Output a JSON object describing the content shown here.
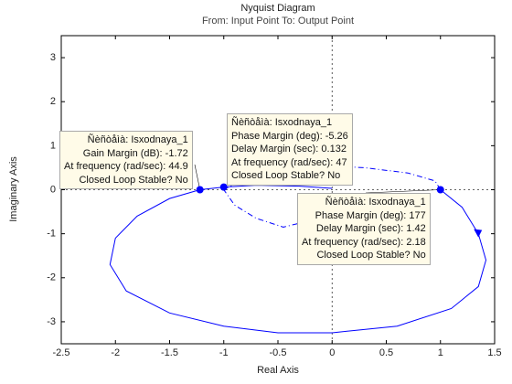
{
  "chart_data": {
    "type": "line",
    "title": "Nyquist Diagram",
    "subtitle": "From: Input Point  To: Output Point",
    "x_label": "Real Axis",
    "y_label": "Imaginary Axis",
    "xlim": [
      -2.5,
      1.5
    ],
    "ylim": [
      -3.5,
      3.5
    ],
    "xticks": [
      -2.5,
      -2,
      -1.5,
      -1,
      -0.5,
      0,
      0.5,
      1,
      1.5
    ],
    "yticks": [
      -3,
      -2,
      -1,
      0,
      1,
      2,
      3
    ],
    "series": [
      {
        "color": "#0000ff",
        "dash": "solid",
        "x": [
          1.0,
          1.2,
          1.35,
          1.42,
          1.35,
          1.1,
          0.6,
          0.0,
          -0.5,
          -1.0,
          -1.5,
          -1.9,
          -2.05,
          -2.0,
          -1.8,
          -1.5,
          -1.22,
          -1.0,
          -0.7,
          -0.3,
          0.0
        ],
        "y": [
          0.0,
          -0.4,
          -1.0,
          -1.6,
          -2.2,
          -2.7,
          -3.1,
          -3.25,
          -3.25,
          -3.1,
          -2.8,
          -2.3,
          -1.7,
          -1.1,
          -0.6,
          -0.2,
          0.0,
          0.06,
          0.1,
          0.08,
          0.03
        ]
      },
      {
        "color": "#0000ff",
        "dash": "dashdot",
        "x": [
          1.0,
          0.95,
          0.7,
          0.3,
          -0.1,
          -0.5,
          -0.85,
          -1.0,
          -0.9,
          -0.7,
          -0.45,
          -0.2,
          0.0
        ],
        "y": [
          0.0,
          0.2,
          0.38,
          0.5,
          0.55,
          0.45,
          0.2,
          0.0,
          -0.35,
          -0.65,
          -0.85,
          -0.7,
          -0.45
        ]
      }
    ],
    "datatips": [
      {
        "x": -1.22,
        "y": 0.0,
        "lines": [
          "Ñèñòåìà: Isxodnaya_1",
          "Gain Margin (dB): -1.72",
          "At frequency (rad/sec): 44.9",
          "Closed Loop Stable? No"
        ]
      },
      {
        "x": -1.0,
        "y": 0.06,
        "lines": [
          "Ñèñòåìà: Isxodnaya_1",
          "Phase Margin (deg): -5.26",
          "Delay Margin (sec): 0.132",
          "At frequency (rad/sec): 47",
          "Closed Loop Stable? No"
        ]
      },
      {
        "x": 1.0,
        "y": 0.0,
        "lines": [
          "Ñèñòåìà: Isxodnaya_1",
          "Phase Margin (deg): 177",
          "Delay Margin (sec): 1.42",
          "At frequency (rad/sec): 2.18",
          "Closed Loop Stable? No"
        ]
      }
    ]
  }
}
